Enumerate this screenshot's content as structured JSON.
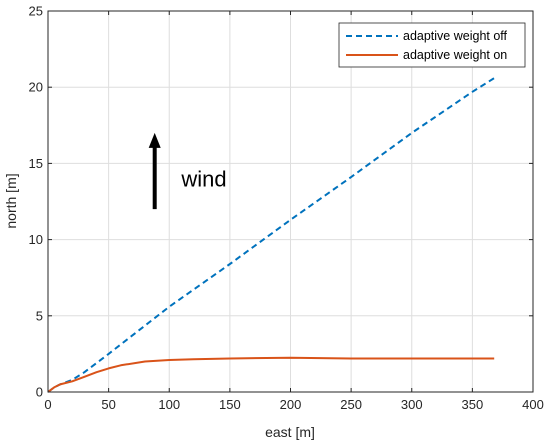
{
  "chart_data": {
    "type": "line",
    "title": "",
    "xlabel": "east  [m]",
    "ylabel": "north [m]",
    "xlim": [
      0,
      400
    ],
    "ylim": [
      0,
      25
    ],
    "xticks": [
      0,
      50,
      100,
      150,
      200,
      250,
      300,
      350,
      400
    ],
    "yticks": [
      0,
      5,
      10,
      15,
      20,
      25
    ],
    "grid": true,
    "legend_position": "top-right",
    "series": [
      {
        "name": "adaptive weight off",
        "color": "#0072BD",
        "style": "dashed",
        "x": [
          0,
          5,
          10,
          20,
          30,
          50,
          100,
          150,
          200,
          250,
          300,
          350,
          368
        ],
        "y": [
          0,
          0.3,
          0.5,
          0.8,
          1.3,
          2.5,
          5.6,
          8.4,
          11.3,
          14.1,
          17.0,
          19.7,
          20.6
        ]
      },
      {
        "name": "adaptive weight on",
        "color": "#D95319",
        "style": "solid",
        "x": [
          0,
          5,
          10,
          20,
          30,
          40,
          50,
          60,
          80,
          100,
          120,
          150,
          200,
          250,
          300,
          350,
          368
        ],
        "y": [
          0,
          0.3,
          0.5,
          0.7,
          1.0,
          1.3,
          1.55,
          1.75,
          2.0,
          2.1,
          2.15,
          2.2,
          2.25,
          2.2,
          2.2,
          2.2,
          2.2
        ]
      }
    ],
    "annotations": [
      {
        "text": "wind",
        "x": 110,
        "y": 14,
        "arrow": {
          "x": 88,
          "y_from": 12,
          "y_to": 17
        }
      }
    ]
  }
}
